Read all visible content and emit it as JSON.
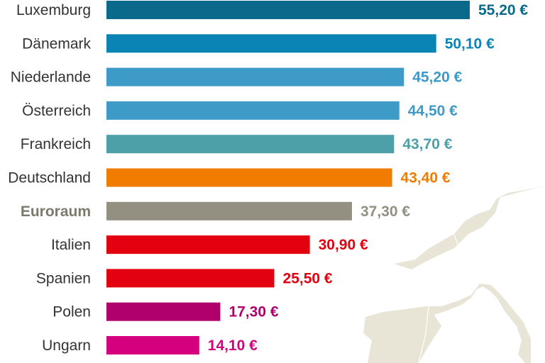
{
  "chart_data": {
    "type": "bar",
    "orientation": "horizontal",
    "categories": [
      "Luxemburg",
      "Dänemark",
      "Niederlande",
      "Österreich",
      "Frankreich",
      "Deutschland",
      "Euroraum",
      "Italien",
      "Spanien",
      "Polen",
      "Ungarn"
    ],
    "values": [
      55.2,
      50.1,
      45.2,
      44.5,
      43.7,
      43.4,
      37.3,
      30.9,
      25.5,
      17.3,
      14.1
    ],
    "value_labels": [
      "55,20 €",
      "50,10 €",
      "45,20 €",
      "44,50 €",
      "43,70 €",
      "43,40 €",
      "37,30 €",
      "30,90 €",
      "25,50 €",
      "17,30 €",
      "14,10 €"
    ],
    "colors": [
      "#0b6a8c",
      "#0a84b4",
      "#3e9ac7",
      "#3e9ac7",
      "#4d9fa8",
      "#f07d00",
      "#938f81",
      "#e3000f",
      "#e3000f",
      "#b0006b",
      "#d4007d"
    ],
    "highlight": "Euroraum",
    "xlim": [
      0,
      55.2
    ],
    "grid": false,
    "background": "map of Western Europe",
    "map_color": "#e8e4d6"
  }
}
